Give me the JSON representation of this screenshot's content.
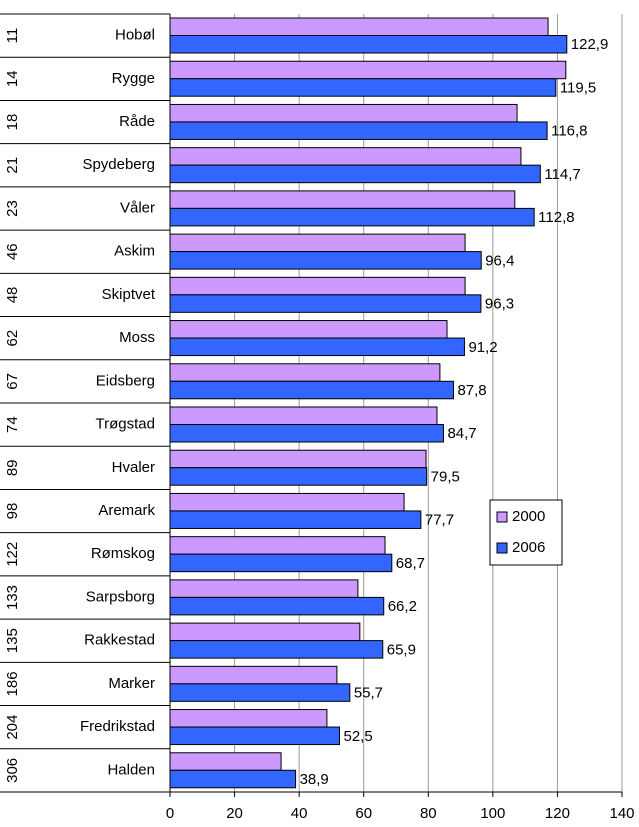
{
  "chart_data": {
    "type": "bar",
    "orientation": "horizontal",
    "categories": [
      "Hobøl",
      "Rygge",
      "Råde",
      "Spydeberg",
      "Våler",
      "Askim",
      "Skiptvet",
      "Moss",
      "Eidsberg",
      "Trøgstad",
      "Hvaler",
      "Aremark",
      "Rømskog",
      "Sarpsborg",
      "Rakkestad",
      "Marker",
      "Fredrikstad",
      "Halden"
    ],
    "ranks": [
      11,
      14,
      18,
      21,
      23,
      46,
      48,
      62,
      67,
      74,
      89,
      98,
      122,
      133,
      135,
      186,
      204,
      306
    ],
    "series": [
      {
        "name": "2000",
        "color": "#cc99ff",
        "values": [
          117.1,
          122.6,
          107.5,
          108.7,
          106.8,
          91.4,
          91.4,
          85.8,
          83.6,
          82.7,
          79.3,
          72.5,
          66.6,
          58.2,
          58.8,
          51.7,
          48.6,
          34.4
        ]
      },
      {
        "name": "2006",
        "color": "#3366ff",
        "values": [
          122.9,
          119.5,
          116.8,
          114.7,
          112.8,
          96.4,
          96.3,
          91.2,
          87.8,
          84.7,
          79.5,
          77.7,
          68.7,
          66.2,
          65.9,
          55.7,
          52.5,
          38.9
        ],
        "value_labels": [
          "122,9",
          "119,5",
          "116,8",
          "114,7",
          "112,8",
          "96,4",
          "96,3",
          "91,2",
          "87,8",
          "84,7",
          "79,5",
          "77,7",
          "68,7",
          "66,2",
          "65,9",
          "55,7",
          "52,5",
          "38,9"
        ]
      }
    ],
    "xlim": [
      0,
      140
    ],
    "xticks": [
      0,
      20,
      40,
      60,
      80,
      100,
      120,
      140
    ],
    "grid": true,
    "legend": "right"
  }
}
